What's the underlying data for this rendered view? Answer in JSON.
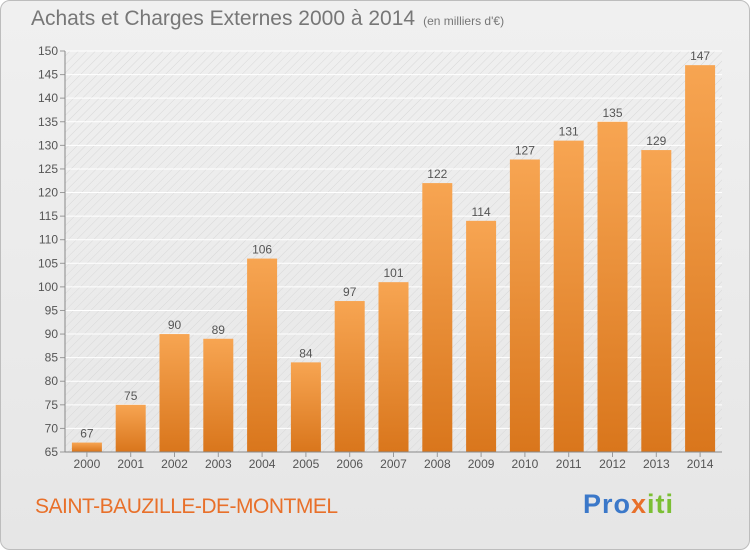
{
  "header": {
    "title": "Achats et Charges Externes 2000 à 2014",
    "unit": "(en milliers d'€)"
  },
  "footer": {
    "commune": "SAINT-BAUZILLE-DE-MONTMEL",
    "logo_parts": [
      "Pro",
      "x",
      "iti"
    ]
  },
  "colors": {
    "bar_top": "#f7a552",
    "bar_bottom": "#d9761c",
    "commune_text": "#e8702a",
    "title_text": "#777777"
  },
  "chart_data": {
    "type": "bar",
    "title": "Achats et Charges Externes 2000 à 2014",
    "subtitle": "(en milliers d'€)",
    "xlabel": "",
    "ylabel": "",
    "categories": [
      "2000",
      "2001",
      "2002",
      "2003",
      "2004",
      "2005",
      "2006",
      "2007",
      "2008",
      "2009",
      "2010",
      "2011",
      "2012",
      "2013",
      "2014"
    ],
    "values": [
      67,
      75,
      90,
      89,
      106,
      84,
      97,
      101,
      122,
      114,
      127,
      131,
      135,
      129,
      147
    ],
    "ylim": [
      65,
      150
    ],
    "yticks": [
      65,
      70,
      75,
      80,
      85,
      90,
      95,
      100,
      105,
      110,
      115,
      120,
      125,
      130,
      135,
      140,
      145,
      150
    ],
    "grid": true,
    "data_labels": true,
    "legend": "none"
  }
}
